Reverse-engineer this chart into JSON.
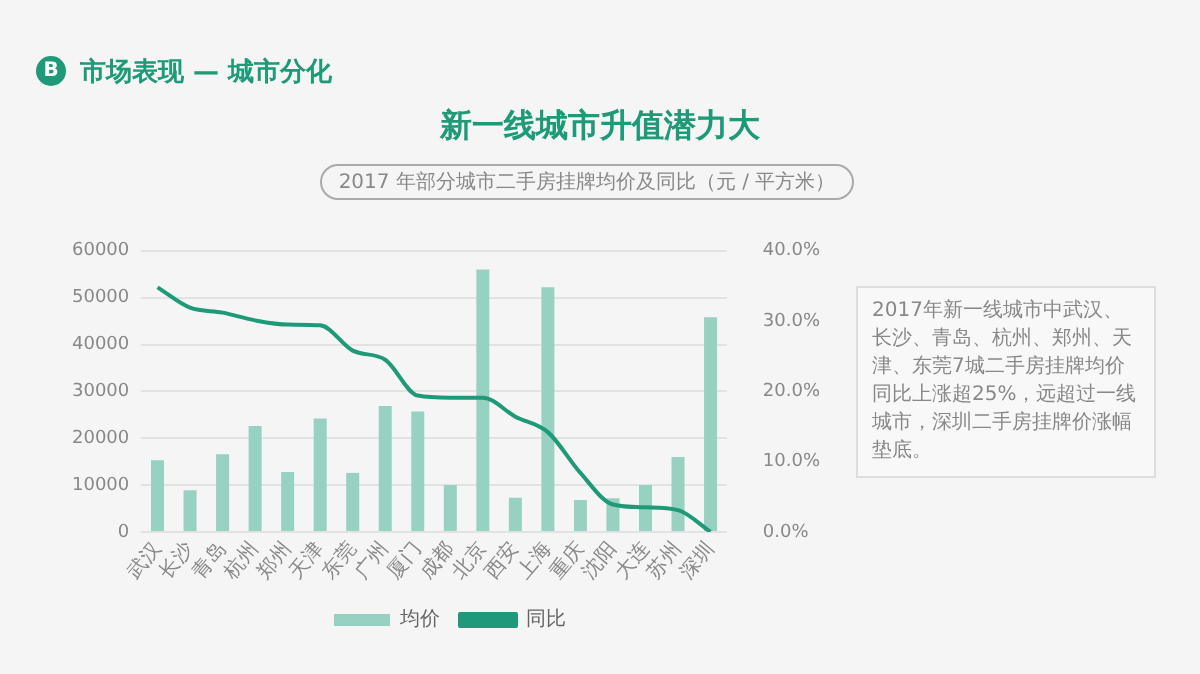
{
  "chart_data": {
    "type": "bar",
    "title": "新一线城市升值潜力大",
    "subtitle": "2017 年部分城市二手房挂牌均价及同比（元 / 平方米）",
    "annotations": [
      "B",
      "市场表现 — 城市分化",
      "2017年新一线城市中武汉、长沙、青岛、杭州、郑州、天津、东莞7城二手房挂牌均价同比上涨超25%，远超过一线城市，深圳二手房挂牌价涨幅垫底。"
    ],
    "categories": [
      "武汉",
      "长沙",
      "青岛",
      "杭州",
      "郑州",
      "天津",
      "东莞",
      "广州",
      "厦门",
      "成都",
      "北京",
      "西安",
      "上海",
      "重庆",
      "沈阳",
      "大连",
      "苏州",
      "深圳"
    ],
    "series": [
      {
        "name": "均价",
        "color": "#97d1c2",
        "values": [
          15300,
          8900,
          16600,
          22600,
          12800,
          24200,
          12600,
          26900,
          25700,
          10000,
          56000,
          7300,
          52200,
          6800,
          7200,
          10000,
          16000,
          45800
        ]
      },
      {
        "name": "同比",
        "type": "line",
        "axis": "y2",
        "color": "#1e9a78",
        "values": [
          34.8,
          31.9,
          31.2,
          30.1,
          29.5,
          29.4,
          25.8,
          24.5,
          19.4,
          19.1,
          19.1,
          16.4,
          14.2,
          8.4,
          3.9,
          3.5,
          3.1,
          0
        ]
      }
    ],
    "ylim": [
      0,
      60000
    ],
    "yticks": [
      0,
      10000,
      20000,
      30000,
      40000,
      50000,
      60000
    ],
    "y2lim": [
      0,
      40
    ],
    "y2ticks": [
      {
        "value": 0,
        "label": "0.0%"
      },
      {
        "value": 10,
        "label": "10.0%"
      },
      {
        "value": 20,
        "label": "20.0%"
      },
      {
        "value": 30,
        "label": "30.0%"
      },
      {
        "value": 40,
        "label": "40.0%"
      }
    ],
    "grid": "y",
    "legend": "bottom",
    "marker": "none",
    "line_style": "solid"
  }
}
